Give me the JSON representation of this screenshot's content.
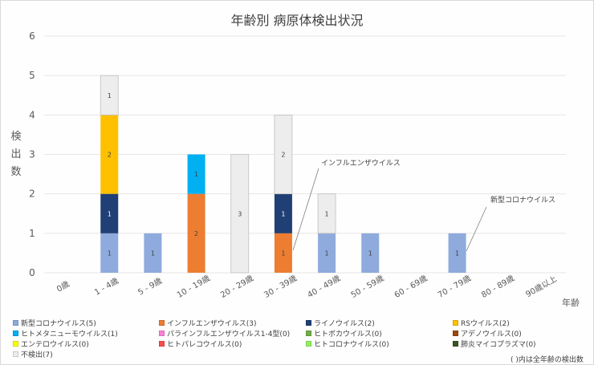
{
  "chart_data": {
    "type": "bar",
    "stacked": true,
    "title": "年齢別 病原体検出状況",
    "xlabel": "年齢",
    "ylabel": "検出数",
    "ylim": [
      0,
      6
    ],
    "yticks": [
      "0",
      "1",
      "2",
      "3",
      "4",
      "5",
      "6"
    ],
    "grid": true,
    "legend_position": "bottom",
    "categories": [
      "0歳",
      "1 - 4歳",
      "5 - 9歳",
      "10 - 19歳",
      "20 - 29歳",
      "30 - 39歳",
      "40 - 49歳",
      "50 - 59歳",
      "60 - 69歳",
      "70 - 79歳",
      "80 - 89歳",
      "90歳以上"
    ],
    "series": [
      {
        "name": "新型コロナウイルス",
        "legend": "新型コロナウイルス(5)",
        "color": "#8faadc",
        "values": [
          0,
          1,
          1,
          0,
          0,
          0,
          1,
          1,
          0,
          1,
          0,
          0
        ]
      },
      {
        "name": "インフルエンザウイルス",
        "legend": "インフルエンザウイルス(3)",
        "color": "#ed7d31",
        "values": [
          0,
          0,
          0,
          2,
          0,
          1,
          0,
          0,
          0,
          0,
          0,
          0
        ]
      },
      {
        "name": "ライノウイルス",
        "legend": "ライノウイルス(2)",
        "color": "#203f74",
        "values": [
          0,
          1,
          0,
          0,
          0,
          1,
          0,
          0,
          0,
          0,
          0,
          0
        ]
      },
      {
        "name": "RSウイルス",
        "legend": "RSウイルス(2)",
        "color": "#ffc000",
        "values": [
          0,
          2,
          0,
          0,
          0,
          0,
          0,
          0,
          0,
          0,
          0,
          0
        ]
      },
      {
        "name": "ヒトメタニューモウイルス",
        "legend": "ヒトメタニューモウイルス(1)",
        "color": "#00b0f0",
        "values": [
          0,
          0,
          0,
          1,
          0,
          0,
          0,
          0,
          0,
          0,
          0,
          0
        ]
      },
      {
        "name": "パラインフルエンザウイルス1-4型",
        "legend": "パラインフルエンザウイルス1-4型(0)",
        "color": "#ff7fd8",
        "values": [
          0,
          0,
          0,
          0,
          0,
          0,
          0,
          0,
          0,
          0,
          0,
          0
        ]
      },
      {
        "name": "ヒトボカウイルス",
        "legend": "ヒトボカウイルス(0)",
        "color": "#70ad47",
        "values": [
          0,
          0,
          0,
          0,
          0,
          0,
          0,
          0,
          0,
          0,
          0,
          0
        ]
      },
      {
        "name": "アデノウイルス",
        "legend": "アデノウイルス(0)",
        "color": "#9e480e",
        "values": [
          0,
          0,
          0,
          0,
          0,
          0,
          0,
          0,
          0,
          0,
          0,
          0
        ]
      },
      {
        "name": "エンテロウイルス",
        "legend": "エンテロウイルス(0)",
        "color": "#ffff00",
        "values": [
          0,
          0,
          0,
          0,
          0,
          0,
          0,
          0,
          0,
          0,
          0,
          0
        ]
      },
      {
        "name": "ヒトパレコウイルス",
        "legend": "ヒトパレコウイルス(0)",
        "color": "#ff4b4b",
        "values": [
          0,
          0,
          0,
          0,
          0,
          0,
          0,
          0,
          0,
          0,
          0,
          0
        ]
      },
      {
        "name": "ヒトコロナウイルス",
        "legend": "ヒトコロナウイルス(0)",
        "color": "#92f060",
        "values": [
          0,
          0,
          0,
          0,
          0,
          0,
          0,
          0,
          0,
          0,
          0,
          0
        ]
      },
      {
        "name": "肺炎マイコプラズマ",
        "legend": "肺炎マイコプラズマ(0)",
        "color": "#375623",
        "values": [
          0,
          0,
          0,
          0,
          0,
          0,
          0,
          0,
          0,
          0,
          0,
          0
        ]
      },
      {
        "name": "不検出",
        "legend": "不検出(7)",
        "color": "#ededed",
        "values": [
          0,
          1,
          0,
          0,
          3,
          2,
          1,
          0,
          0,
          0,
          0,
          0
        ]
      }
    ],
    "annotations": [
      {
        "text": "インフルエンザウイルス",
        "category": "30 - 39歳",
        "series": "インフルエンザウイルス"
      },
      {
        "text": "新型コロナウイルス",
        "category": "70 - 79歳",
        "series": "新型コロナウイルス"
      }
    ],
    "note": "( )内は全年齢の検出数"
  }
}
